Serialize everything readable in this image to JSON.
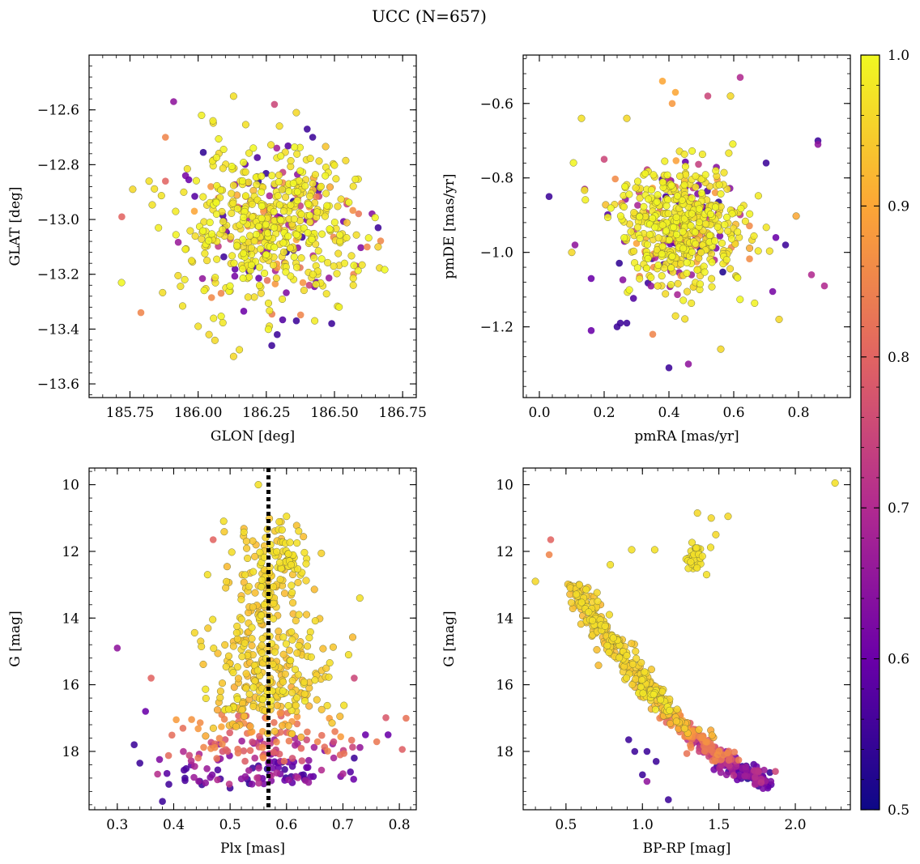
{
  "chart_data": {
    "type": "scatter",
    "title": "UCC (N=657)",
    "colorbar": {
      "vmin": 0.5,
      "vmax": 1.0,
      "ticks": [
        "0.5",
        "0.6",
        "0.7",
        "0.8",
        "0.9",
        "1.0"
      ],
      "colormap": "plasma",
      "colors": [
        "#0d0887",
        "#6a00a8",
        "#b12a90",
        "#e16462",
        "#fca636",
        "#f0f921"
      ]
    },
    "panels": [
      {
        "xlabel": "GLON [deg]",
        "ylabel": "GLAT [deg]",
        "xlim": [
          185.6,
          186.8
        ],
        "ylim": [
          -13.65,
          -12.4
        ],
        "xticks": [
          185.75,
          186.0,
          186.25,
          186.5,
          186.75
        ],
        "xtick_labels": [
          "185.75",
          "186.00",
          "186.25",
          "186.50",
          "186.75"
        ],
        "yticks": [
          -13.6,
          -13.4,
          -13.2,
          -13.0,
          -12.8,
          -12.6
        ],
        "ytick_labels": [
          "−13.6",
          "−13.4",
          "−13.2",
          "−13.0",
          "−12.8",
          "−12.6"
        ],
        "cloud": {
          "cx": 186.25,
          "cy": -13.02,
          "sx": 0.16,
          "sy": 0.14
        },
        "points": [
          {
            "x": 185.72,
            "y": -12.99,
            "c": 0.8
          },
          {
            "x": 185.79,
            "y": -13.34,
            "c": 0.85
          },
          {
            "x": 185.76,
            "y": -12.89,
            "c": 0.96
          },
          {
            "x": 185.91,
            "y": -12.57,
            "c": 0.65
          },
          {
            "x": 186.13,
            "y": -12.55,
            "c": 0.97
          },
          {
            "x": 186.28,
            "y": -12.58,
            "c": 0.75
          },
          {
            "x": 186.36,
            "y": -12.61,
            "c": 0.96
          },
          {
            "x": 186.13,
            "y": -13.5,
            "c": 0.96
          },
          {
            "x": 186.27,
            "y": -13.46,
            "c": 0.55
          },
          {
            "x": 186.29,
            "y": -13.42,
            "c": 0.55
          },
          {
            "x": 186.49,
            "y": -13.38,
            "c": 0.55
          },
          {
            "x": 186.66,
            "y": -13.03,
            "c": 0.55
          },
          {
            "x": 186.62,
            "y": -13.1,
            "c": 0.85
          },
          {
            "x": 186.66,
            "y": -13.1,
            "c": 0.95
          },
          {
            "x": 186.58,
            "y": -13.17,
            "c": 0.72
          },
          {
            "x": 186.57,
            "y": -13.2,
            "c": 0.85
          },
          {
            "x": 185.82,
            "y": -12.86,
            "c": 0.97
          },
          {
            "x": 185.88,
            "y": -12.86,
            "c": 0.8
          },
          {
            "x": 185.88,
            "y": -12.7,
            "c": 0.85
          },
          {
            "x": 186.36,
            "y": -13.37,
            "c": 0.55
          },
          {
            "x": 186.04,
            "y": -13.42,
            "c": 0.96
          },
          {
            "x": 186.0,
            "y": -13.39,
            "c": 0.97
          },
          {
            "x": 186.4,
            "y": -12.67,
            "c": 0.55
          },
          {
            "x": 186.42,
            "y": -12.7,
            "c": 0.55
          }
        ]
      },
      {
        "xlabel": "pmRA [mas/yr]",
        "ylabel": "pmDE [mas/yr]",
        "xlim": [
          -0.05,
          0.96
        ],
        "ylim": [
          -1.39,
          -0.47
        ],
        "xticks": [
          0.0,
          0.2,
          0.4,
          0.6,
          0.8
        ],
        "xtick_labels": [
          "0.0",
          "0.2",
          "0.4",
          "0.6",
          "0.8"
        ],
        "yticks": [
          -1.2,
          -1.0,
          -0.8,
          -0.6
        ],
        "ytick_labels": [
          "−1.2",
          "−1.0",
          "−0.8",
          "−0.6"
        ],
        "cloud": {
          "cx": 0.44,
          "cy": -0.93,
          "sx": 0.11,
          "sy": 0.09
        },
        "points": [
          {
            "x": 0.03,
            "y": -0.85,
            "c": 0.55
          },
          {
            "x": 0.1,
            "y": -1.0,
            "c": 0.96
          },
          {
            "x": 0.11,
            "y": -0.98,
            "c": 0.65
          },
          {
            "x": 0.16,
            "y": -1.07,
            "c": 0.6
          },
          {
            "x": 0.16,
            "y": -1.21,
            "c": 0.6
          },
          {
            "x": 0.24,
            "y": -1.2,
            "c": 0.55
          },
          {
            "x": 0.25,
            "y": -1.19,
            "c": 0.55
          },
          {
            "x": 0.27,
            "y": -1.19,
            "c": 0.55
          },
          {
            "x": 0.35,
            "y": -1.22,
            "c": 0.85
          },
          {
            "x": 0.4,
            "y": -1.31,
            "c": 0.55
          },
          {
            "x": 0.46,
            "y": -1.3,
            "c": 0.65
          },
          {
            "x": 0.56,
            "y": -1.26,
            "c": 0.96
          },
          {
            "x": 0.74,
            "y": -1.18,
            "c": 0.96
          },
          {
            "x": 0.84,
            "y": -1.06,
            "c": 0.7
          },
          {
            "x": 0.88,
            "y": -1.09,
            "c": 0.7
          },
          {
            "x": 0.86,
            "y": -0.7,
            "c": 0.55
          },
          {
            "x": 0.86,
            "y": -0.71,
            "c": 0.65
          },
          {
            "x": 0.7,
            "y": -0.76,
            "c": 0.55
          },
          {
            "x": 0.62,
            "y": -0.53,
            "c": 0.7
          },
          {
            "x": 0.59,
            "y": -0.58,
            "c": 0.96
          },
          {
            "x": 0.52,
            "y": -0.58,
            "c": 0.75
          },
          {
            "x": 0.38,
            "y": -0.54,
            "c": 0.9
          },
          {
            "x": 0.42,
            "y": -0.57,
            "c": 0.9
          },
          {
            "x": 0.41,
            "y": -0.6,
            "c": 0.88
          },
          {
            "x": 0.13,
            "y": -0.64,
            "c": 0.97
          },
          {
            "x": 0.2,
            "y": -0.75,
            "c": 0.75
          },
          {
            "x": 0.14,
            "y": -0.83,
            "c": 0.7
          },
          {
            "x": 0.27,
            "y": -0.64,
            "c": 0.96
          },
          {
            "x": 0.73,
            "y": -0.96,
            "c": 0.6
          },
          {
            "x": 0.76,
            "y": -0.98,
            "c": 0.55
          }
        ]
      },
      {
        "xlabel": "Plx [mas]",
        "ylabel": "G [mag]",
        "xlim": [
          0.25,
          0.83
        ],
        "ylim": [
          19.75,
          9.5
        ],
        "xticks": [
          0.3,
          0.4,
          0.5,
          0.6,
          0.7,
          0.8
        ],
        "xtick_labels": [
          "0.3",
          "0.4",
          "0.5",
          "0.6",
          "0.7",
          "0.8"
        ],
        "yticks": [
          10,
          12,
          14,
          16,
          18
        ],
        "ytick_labels": [
          "10",
          "12",
          "14",
          "16",
          "18"
        ],
        "vline": 0.568,
        "points": [
          {
            "x": 0.3,
            "y": 14.9,
            "c": 0.65
          },
          {
            "x": 0.55,
            "y": 10.0,
            "c": 0.97
          },
          {
            "x": 0.47,
            "y": 11.65,
            "c": 0.8
          },
          {
            "x": 0.46,
            "y": 12.7,
            "c": 0.97
          },
          {
            "x": 0.6,
            "y": 10.95,
            "c": 0.97
          },
          {
            "x": 0.73,
            "y": 13.4,
            "c": 0.97
          },
          {
            "x": 0.71,
            "y": 15.1,
            "c": 0.97
          },
          {
            "x": 0.78,
            "y": 17.5,
            "c": 0.6
          },
          {
            "x": 0.38,
            "y": 19.5,
            "c": 0.55
          },
          {
            "x": 0.5,
            "y": 19.1,
            "c": 0.55
          },
          {
            "x": 0.34,
            "y": 18.35,
            "c": 0.55
          },
          {
            "x": 0.33,
            "y": 17.8,
            "c": 0.55
          },
          {
            "x": 0.35,
            "y": 16.8,
            "c": 0.6
          },
          {
            "x": 0.36,
            "y": 15.8,
            "c": 0.8
          },
          {
            "x": 0.42,
            "y": 18.8,
            "c": 0.55
          },
          {
            "x": 0.45,
            "y": 19.0,
            "c": 0.55
          },
          {
            "x": 0.72,
            "y": 18.2,
            "c": 0.55
          },
          {
            "x": 0.74,
            "y": 17.5,
            "c": 0.6
          },
          {
            "x": 0.72,
            "y": 15.8,
            "c": 0.75
          },
          {
            "x": 0.57,
            "y": 18.7,
            "c": 0.55
          },
          {
            "x": 0.63,
            "y": 18.7,
            "c": 0.55
          },
          {
            "x": 0.54,
            "y": 18.5,
            "c": 0.55
          }
        ]
      },
      {
        "xlabel": "BP-RP [mag]",
        "ylabel": "G [mag]",
        "xlim": [
          0.22,
          2.36
        ],
        "ylim": [
          19.75,
          9.5
        ],
        "xticks": [
          0.5,
          1.0,
          1.5,
          2.0
        ],
        "xtick_labels": [
          "0.5",
          "1.0",
          "1.5",
          "2.0"
        ],
        "yticks": [
          10,
          12,
          14,
          16,
          18
        ],
        "ytick_labels": [
          "10",
          "12",
          "14",
          "16",
          "18"
        ],
        "main_sequence": [
          [
            0.55,
            13.0
          ],
          [
            0.65,
            13.8
          ],
          [
            0.75,
            14.5
          ],
          [
            0.85,
            15.0
          ],
          [
            0.95,
            15.6
          ],
          [
            1.05,
            16.2
          ],
          [
            1.15,
            16.7
          ],
          [
            1.25,
            17.2
          ],
          [
            1.35,
            17.6
          ],
          [
            1.45,
            18.0
          ],
          [
            1.55,
            18.35
          ],
          [
            1.7,
            18.65
          ],
          [
            1.8,
            18.9
          ]
        ],
        "points": [
          {
            "x": 2.26,
            "y": 9.95,
            "c": 0.97
          },
          {
            "x": 0.4,
            "y": 11.65,
            "c": 0.8
          },
          {
            "x": 0.39,
            "y": 12.1,
            "c": 0.85
          },
          {
            "x": 0.3,
            "y": 12.9,
            "c": 0.96
          },
          {
            "x": 0.79,
            "y": 12.4,
            "c": 0.97
          },
          {
            "x": 0.93,
            "y": 11.95,
            "c": 0.97
          },
          {
            "x": 1.08,
            "y": 11.95,
            "c": 0.97
          },
          {
            "x": 1.36,
            "y": 10.85,
            "c": 0.96
          },
          {
            "x": 1.45,
            "y": 11.0,
            "c": 0.96
          },
          {
            "x": 1.56,
            "y": 10.95,
            "c": 0.96
          },
          {
            "x": 1.48,
            "y": 11.5,
            "c": 0.96
          },
          {
            "x": 1.42,
            "y": 12.7,
            "c": 0.97
          },
          {
            "x": 1.17,
            "y": 19.45,
            "c": 0.55
          },
          {
            "x": 1.03,
            "y": 18.9,
            "c": 0.65
          },
          {
            "x": 1.0,
            "y": 18.7,
            "c": 0.55
          },
          {
            "x": 0.95,
            "y": 18.0,
            "c": 0.55
          },
          {
            "x": 1.03,
            "y": 18.0,
            "c": 0.55
          },
          {
            "x": 1.09,
            "y": 18.3,
            "c": 0.55
          },
          {
            "x": 0.91,
            "y": 17.65,
            "c": 0.55
          },
          {
            "x": 1.87,
            "y": 18.6,
            "c": 0.75
          },
          {
            "x": 1.82,
            "y": 19.1,
            "c": 0.6
          },
          {
            "x": 1.76,
            "y": 18.75,
            "c": 0.6
          },
          {
            "x": 1.73,
            "y": 18.6,
            "c": 0.6
          },
          {
            "x": 1.62,
            "y": 18.85,
            "c": 0.6
          },
          {
            "x": 1.55,
            "y": 18.7,
            "c": 0.65
          }
        ]
      }
    ]
  }
}
